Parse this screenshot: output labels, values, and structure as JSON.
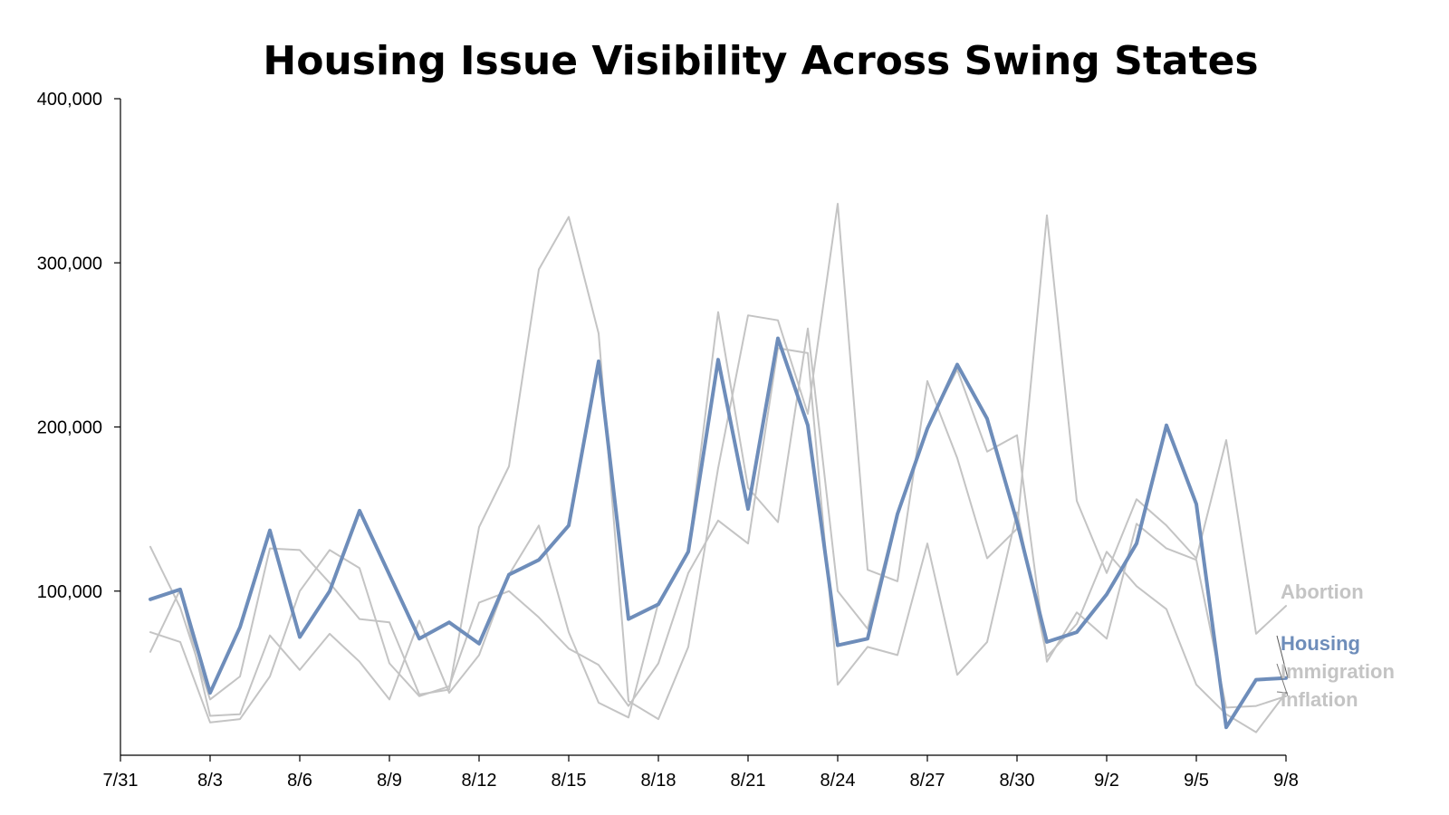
{
  "chart_data": {
    "type": "line",
    "title": "Housing Issue Visibility Across Swing States",
    "xlabel": "",
    "ylabel": "",
    "ylim": [
      0,
      400000
    ],
    "yticks": [
      "400,000",
      "300,000",
      "200,000",
      "100,000"
    ],
    "ytick_values": [
      400000,
      300000,
      200000,
      100000
    ],
    "x_dates": [
      "8/1",
      "8/2",
      "8/3",
      "8/4",
      "8/5",
      "8/6",
      "8/7",
      "8/8",
      "8/9",
      "8/10",
      "8/11",
      "8/12",
      "8/13",
      "8/14",
      "8/15",
      "8/16",
      "8/17",
      "8/18",
      "8/19",
      "8/20",
      "8/21",
      "8/22",
      "8/23",
      "8/24",
      "8/25",
      "8/26",
      "8/27",
      "8/28",
      "8/29",
      "8/30",
      "8/31",
      "9/1",
      "9/2",
      "9/3",
      "9/4",
      "9/5",
      "9/6",
      "9/7",
      "9/8"
    ],
    "xticks": [
      "7/31",
      "8/3",
      "8/6",
      "8/9",
      "8/12",
      "8/15",
      "8/18",
      "8/21",
      "8/24",
      "8/27",
      "8/30",
      "9/2",
      "9/5",
      "9/8"
    ],
    "grid": false,
    "legend": "right, direct labels at line ends",
    "highlight_color": "#6e8dba",
    "muted_color": "#c4c4c4",
    "series": [
      {
        "name": "Abortion",
        "highlight": false,
        "values": [
          127000,
          90000,
          34000,
          48000,
          126000,
          125000,
          105000,
          83000,
          81000,
          37000,
          40000,
          139000,
          176000,
          296000,
          328000,
          257000,
          33000,
          22000,
          66000,
          175000,
          268000,
          265000,
          208000,
          336000,
          113000,
          106000,
          228000,
          181000,
          120000,
          138000,
          329000,
          155000,
          111000,
          156000,
          140000,
          120000,
          192000,
          74000,
          91000
        ]
      },
      {
        "name": "Housing",
        "highlight": true,
        "values": [
          95000,
          101000,
          38000,
          78000,
          137000,
          72000,
          100000,
          149000,
          110000,
          71000,
          81000,
          68000,
          110000,
          119000,
          140000,
          240000,
          83000,
          92000,
          124000,
          241000,
          150000,
          254000,
          201000,
          67000,
          71000,
          147000,
          199000,
          238000,
          205000,
          142000,
          69000,
          75000,
          98000,
          129000,
          201000,
          153000,
          17000,
          46000,
          47000
        ]
      },
      {
        "name": "Immigration",
        "highlight": false,
        "values": [
          63000,
          101000,
          24000,
          25000,
          73000,
          52000,
          74000,
          57000,
          34000,
          82000,
          38000,
          61000,
          110000,
          140000,
          75000,
          32000,
          23000,
          93000,
          124000,
          270000,
          163000,
          142000,
          260000,
          100000,
          77000,
          148000,
          200000,
          235000,
          185000,
          195000,
          57000,
          87000,
          71000,
          141000,
          126000,
          119000,
          29000,
          30000,
          36000
        ]
      },
      {
        "name": "Inflation",
        "highlight": false,
        "values": [
          75000,
          69000,
          20000,
          22000,
          48000,
          100000,
          125000,
          114000,
          56000,
          36000,
          42000,
          93000,
          100000,
          84000,
          65000,
          55000,
          30000,
          56000,
          111000,
          143000,
          129000,
          248000,
          245000,
          43000,
          66000,
          61000,
          129000,
          49000,
          69000,
          148000,
          60000,
          80000,
          124000,
          103000,
          89000,
          43000,
          25000,
          14000,
          38000
        ]
      }
    ],
    "label_order": [
      "Abortion",
      "Housing",
      "Immigration",
      "Inflation"
    ]
  }
}
